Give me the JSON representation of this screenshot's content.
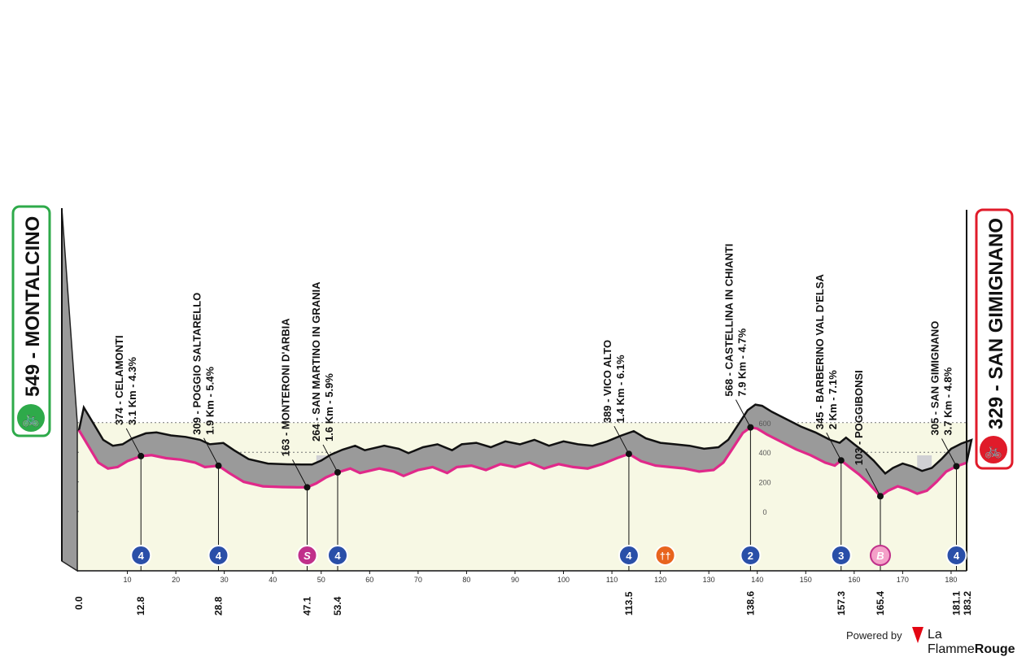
{
  "start": {
    "name": "549 - MONTALCINO",
    "km": "0.0"
  },
  "finish": {
    "name": "329 - SAN GIMIGNANO",
    "km": "183.2"
  },
  "colors": {
    "start_box": "#2eaa4a",
    "finish_box": "#e01b2a",
    "profile_line": "#e0298a",
    "kom": "#2a4fa8",
    "sprint": "#c0308a",
    "feed": "#f29a62"
  },
  "chart_data": {
    "type": "area",
    "x_axis_ticks": [
      "10",
      "20",
      "30",
      "40",
      "50",
      "60",
      "70",
      "80",
      "90",
      "100",
      "110",
      "120",
      "130",
      "140",
      "150",
      "160",
      "170",
      "180"
    ],
    "altitude_ticks": [
      "600",
      "400",
      "200",
      "0"
    ],
    "xlim": [
      0,
      183.2
    ],
    "points": [
      {
        "label": "374 - CELAMONTI",
        "detail": "3.1 Km - 4.3%",
        "km": "12.8",
        "marker": "4"
      },
      {
        "label": "309 - POGGIO SALTARELLO",
        "detail": "1.9 Km - 5.4%",
        "km": "28.8",
        "marker": "4"
      },
      {
        "label": "163 - MONTERONI D'ARBIA",
        "detail": "",
        "km": "47.1",
        "marker": "S"
      },
      {
        "label": "264 - SAN MARTINO IN GRANIA",
        "detail": "1.6 Km - 5.9%",
        "km": "53.4",
        "marker": "4"
      },
      {
        "label": "389 - VICO ALTO",
        "detail": "1.4 Km - 6.1%",
        "km": "113.5",
        "marker": "4"
      },
      {
        "label": "",
        "detail": "",
        "km": "",
        "marker": "feed"
      },
      {
        "label": "568 - CASTELLINA IN CHIANTI",
        "detail": "7.9 Km - 4.7%",
        "km": "138.6",
        "marker": "2"
      },
      {
        "label": "345 - BARBERINO VAL D'ELSA",
        "detail": "2 Km - 7.1%",
        "km": "157.3",
        "marker": "3"
      },
      {
        "label": "103 - POGGIBONSI",
        "detail": "",
        "km": "165.4",
        "marker": "B"
      },
      {
        "label": "305 - SAN GIMIGNANO",
        "detail": "3.7 Km - 4.8%",
        "km": "181.1",
        "marker": "4"
      }
    ],
    "profile": [
      [
        0,
        549
      ],
      [
        2,
        440
      ],
      [
        4,
        330
      ],
      [
        6,
        290
      ],
      [
        8,
        300
      ],
      [
        10,
        340
      ],
      [
        12.8,
        374
      ],
      [
        15,
        380
      ],
      [
        18,
        360
      ],
      [
        21,
        350
      ],
      [
        24,
        330
      ],
      [
        26,
        300
      ],
      [
        28.8,
        309
      ],
      [
        31,
        260
      ],
      [
        34,
        200
      ],
      [
        38,
        170
      ],
      [
        42,
        165
      ],
      [
        45,
        163
      ],
      [
        47.1,
        163
      ],
      [
        49,
        190
      ],
      [
        51,
        230
      ],
      [
        53.4,
        264
      ],
      [
        56,
        290
      ],
      [
        58,
        260
      ],
      [
        62,
        290
      ],
      [
        65,
        270
      ],
      [
        67,
        240
      ],
      [
        70,
        280
      ],
      [
        73,
        300
      ],
      [
        76,
        260
      ],
      [
        78,
        300
      ],
      [
        81,
        310
      ],
      [
        84,
        280
      ],
      [
        87,
        320
      ],
      [
        90,
        300
      ],
      [
        93,
        330
      ],
      [
        96,
        290
      ],
      [
        99,
        320
      ],
      [
        102,
        300
      ],
      [
        105,
        290
      ],
      [
        108,
        320
      ],
      [
        111,
        360
      ],
      [
        113.5,
        389
      ],
      [
        116,
        340
      ],
      [
        119,
        310
      ],
      [
        122,
        300
      ],
      [
        125,
        290
      ],
      [
        128,
        270
      ],
      [
        131,
        280
      ],
      [
        133,
        330
      ],
      [
        135,
        430
      ],
      [
        137,
        530
      ],
      [
        138.6,
        568
      ],
      [
        140,
        560
      ],
      [
        142,
        520
      ],
      [
        145,
        470
      ],
      [
        148,
        420
      ],
      [
        151,
        380
      ],
      [
        154,
        330
      ],
      [
        156,
        310
      ],
      [
        157.3,
        345
      ],
      [
        159,
        300
      ],
      [
        161,
        250
      ],
      [
        163,
        190
      ],
      [
        165.4,
        103
      ],
      [
        167,
        140
      ],
      [
        169,
        170
      ],
      [
        171,
        150
      ],
      [
        173,
        120
      ],
      [
        175,
        140
      ],
      [
        177,
        200
      ],
      [
        179,
        270
      ],
      [
        181.1,
        305
      ],
      [
        183.2,
        329
      ]
    ]
  },
  "footer": {
    "powered": "Powered by",
    "brand_light": "La Flamme",
    "brand_bold": "Rouge"
  }
}
